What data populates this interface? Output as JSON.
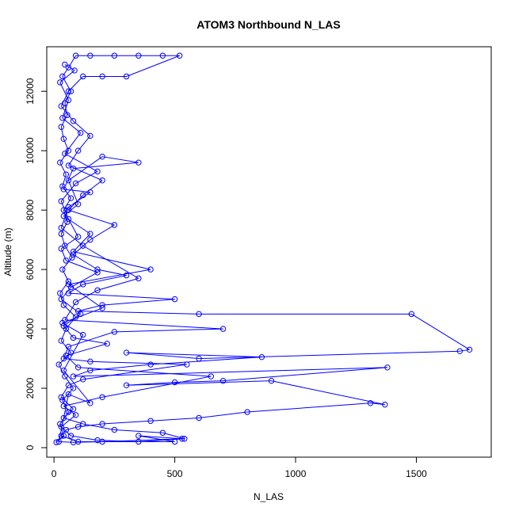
{
  "chart_data": {
    "type": "line",
    "title": "ATOM3 Northbound N_LAS",
    "xlabel": "N_LAS",
    "ylabel": "Altitude (m)",
    "xlim": [
      -30,
      1810
    ],
    "ylim": [
      -320,
      13500
    ],
    "xticks": [
      0,
      500,
      1000,
      1500
    ],
    "yticks": [
      0,
      2000,
      4000,
      6000,
      8000,
      10000,
      12000
    ],
    "markers": "open-circle",
    "grid": false,
    "legend": "none",
    "colors": {
      "series": "#0000FF"
    },
    "series": [
      {
        "points": [
          [
            10,
            180
          ],
          [
            40,
            400
          ],
          [
            25,
            800
          ],
          [
            60,
            1200
          ],
          [
            35,
            1600
          ],
          [
            80,
            2000
          ],
          [
            45,
            2400
          ],
          [
            20,
            2800
          ],
          [
            70,
            3200
          ],
          [
            30,
            3600
          ],
          [
            50,
            4000
          ],
          [
            90,
            4400
          ],
          [
            40,
            4800
          ],
          [
            25,
            5200
          ],
          [
            60,
            5600
          ],
          [
            35,
            6000
          ],
          [
            75,
            6400
          ],
          [
            45,
            6800
          ],
          [
            30,
            7200
          ],
          [
            55,
            7600
          ],
          [
            40,
            8000
          ],
          [
            70,
            8400
          ],
          [
            35,
            8800
          ],
          [
            50,
            9200
          ],
          [
            25,
            9600
          ],
          [
            60,
            10000
          ],
          [
            40,
            10400
          ],
          [
            30,
            10800
          ],
          [
            55,
            11200
          ],
          [
            45,
            11600
          ],
          [
            70,
            12000
          ],
          [
            35,
            12500
          ],
          [
            60,
            12800
          ],
          [
            90,
            13200
          ],
          [
            150,
            13200
          ],
          [
            250,
            13200
          ],
          [
            350,
            13200
          ],
          [
            450,
            13200
          ],
          [
            520,
            13200
          ],
          [
            300,
            12500
          ],
          [
            200,
            12500
          ],
          [
            120,
            12500
          ],
          [
            60,
            12000
          ],
          [
            30,
            11500
          ],
          [
            80,
            11000
          ],
          [
            150,
            10500
          ],
          [
            100,
            10000
          ],
          [
            60,
            9500
          ],
          [
            200,
            9000
          ],
          [
            120,
            8500
          ],
          [
            60,
            8000
          ],
          [
            250,
            7500
          ],
          [
            150,
            7000
          ],
          [
            80,
            6500
          ],
          [
            180,
            6000
          ],
          [
            300,
            5800
          ],
          [
            120,
            5500
          ],
          [
            60,
            5200
          ],
          [
            500,
            5000
          ],
          [
            200,
            4800
          ],
          [
            100,
            4600
          ],
          [
            600,
            4500
          ],
          [
            1480,
            4500
          ],
          [
            1720,
            3300
          ],
          [
            1680,
            3250
          ],
          [
            600,
            3000
          ],
          [
            300,
            3200
          ],
          [
            860,
            3050
          ],
          [
            400,
            2800
          ],
          [
            150,
            2600
          ],
          [
            80,
            2400
          ],
          [
            1380,
            2700
          ],
          [
            700,
            2250
          ],
          [
            500,
            2200
          ],
          [
            300,
            2100
          ],
          [
            900,
            2250
          ],
          [
            1370,
            1450
          ],
          [
            1310,
            1500
          ],
          [
            800,
            1200
          ],
          [
            600,
            1000
          ],
          [
            400,
            900
          ],
          [
            200,
            800
          ],
          [
            100,
            700
          ],
          [
            50,
            600
          ],
          [
            30,
            400
          ],
          [
            100,
            200
          ],
          [
            500,
            200
          ],
          [
            350,
            400
          ],
          [
            530,
            300
          ],
          [
            200,
            200
          ],
          [
            80,
            180
          ],
          [
            20,
            200
          ],
          [
            60,
            1800
          ],
          [
            150,
            1500
          ],
          [
            40,
            2600
          ],
          [
            120,
            3800
          ],
          [
            35,
            4200
          ],
          [
            200,
            4700
          ],
          [
            60,
            5500
          ],
          [
            400,
            6000
          ],
          [
            80,
            6600
          ],
          [
            150,
            7200
          ],
          [
            40,
            7800
          ],
          [
            100,
            8200
          ],
          [
            60,
            9000
          ],
          [
            200,
            9800
          ],
          [
            350,
            9600
          ],
          [
            80,
            9400
          ],
          [
            40,
            8700
          ],
          [
            150,
            8600
          ],
          [
            60,
            8100
          ],
          [
            30,
            7400
          ],
          [
            120,
            6800
          ],
          [
            350,
            5700
          ],
          [
            180,
            5300
          ],
          [
            90,
            4900
          ],
          [
            45,
            4300
          ],
          [
            700,
            4000
          ],
          [
            250,
            3900
          ],
          [
            60,
            3400
          ],
          [
            40,
            3000
          ],
          [
            150,
            2900
          ],
          [
            550,
            2800
          ],
          [
            120,
            2300
          ],
          [
            60,
            2100
          ],
          [
            30,
            1700
          ],
          [
            80,
            1300
          ],
          [
            40,
            1000
          ],
          [
            120,
            800
          ],
          [
            250,
            600
          ],
          [
            450,
            500
          ],
          [
            540,
            300
          ],
          [
            350,
            200
          ],
          [
            180,
            250
          ],
          [
            70,
            400
          ],
          [
            30,
            700
          ],
          [
            90,
            1100
          ],
          [
            40,
            1400
          ],
          [
            200,
            1700
          ],
          [
            650,
            2400
          ],
          [
            100,
            2700
          ],
          [
            50,
            3100
          ],
          [
            220,
            3500
          ],
          [
            80,
            3700
          ],
          [
            40,
            4100
          ],
          [
            110,
            4500
          ],
          [
            30,
            5000
          ],
          [
            70,
            5400
          ],
          [
            180,
            5900
          ],
          [
            50,
            6300
          ],
          [
            30,
            6700
          ],
          [
            100,
            7100
          ],
          [
            60,
            7700
          ],
          [
            30,
            8300
          ],
          [
            90,
            8900
          ],
          [
            180,
            9300
          ],
          [
            45,
            9900
          ],
          [
            110,
            10600
          ],
          [
            35,
            11100
          ],
          [
            60,
            11700
          ],
          [
            25,
            12300
          ],
          [
            85,
            12700
          ],
          [
            45,
            12900
          ]
        ]
      }
    ]
  }
}
